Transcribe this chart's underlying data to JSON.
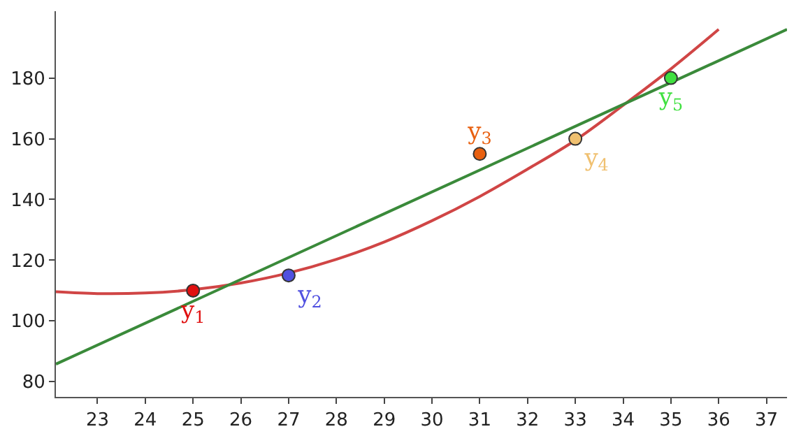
{
  "chart_data": {
    "type": "scatter",
    "xlim": [
      22.13,
      37.43
    ],
    "ylim": [
      75,
      202
    ],
    "xticks": [
      23,
      24,
      25,
      26,
      27,
      28,
      29,
      30,
      31,
      32,
      33,
      34,
      35,
      36,
      37
    ],
    "yticks": [
      80,
      100,
      120,
      140,
      160,
      180
    ],
    "legend": false,
    "marker": "circle",
    "series": [
      {
        "type": "line",
        "marker": "none",
        "color": "#d04545",
        "x": [
          22.13,
          23,
          24,
          25,
          26,
          27,
          28,
          29,
          30,
          31,
          32,
          33,
          34,
          35,
          36
        ],
        "values": [
          109.6,
          109,
          109.2,
          110.3,
          112.5,
          115.8,
          120.3,
          126,
          133,
          141,
          150,
          159.5,
          171,
          183,
          196
        ]
      },
      {
        "type": "line",
        "marker": "none",
        "color": "#3a8a3a",
        "x": [
          22.13,
          37.43
        ],
        "values": [
          85.8,
          196
        ]
      },
      {
        "name": "y$_{1}$",
        "color": "#e01010",
        "x": [
          25
        ],
        "values": [
          110
        ]
      },
      {
        "name": "y$_{2}$",
        "color": "#5050e0",
        "x": [
          27
        ],
        "values": [
          115
        ]
      },
      {
        "name": "y$_{3}$",
        "color": "#e86010",
        "x": [
          31
        ],
        "values": [
          155
        ]
      },
      {
        "name": "y$_{4}$",
        "color": "#f0c070",
        "x": [
          33
        ],
        "values": [
          160
        ]
      },
      {
        "name": "y$_{5}$",
        "color": "#40e040",
        "x": [
          35
        ],
        "values": [
          180
        ]
      }
    ]
  }
}
